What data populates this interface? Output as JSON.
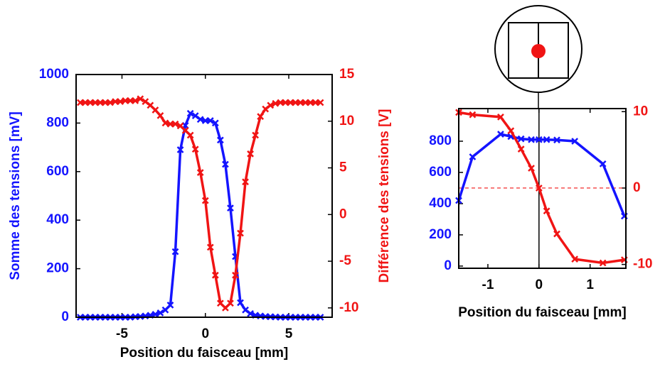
{
  "chart_data": [
    {
      "type": "line",
      "xlabel": "Position du faisceau [mm]",
      "ylabel": "Somme des tensions [mV]",
      "y2label": "Différence des tensions [V]",
      "x": [
        -7.5,
        -7.2,
        -6.9,
        -6.6,
        -6.3,
        -6.0,
        -5.7,
        -5.4,
        -5.1,
        -4.8,
        -4.5,
        -4.2,
        -3.9,
        -3.6,
        -3.3,
        -3.0,
        -2.7,
        -2.4,
        -2.1,
        -1.8,
        -1.5,
        -1.2,
        -0.9,
        -0.6,
        -0.3,
        0,
        0.3,
        0.6,
        0.9,
        1.2,
        1.5,
        1.8,
        2.1,
        2.4,
        2.7,
        3.0,
        3.3,
        3.6,
        3.9,
        4.2,
        4.5,
        4.8,
        5.1,
        5.4,
        5.7,
        6.0,
        6.3,
        6.6,
        6.9
      ],
      "series": [
        {
          "color": "#1414ff",
          "values": [
            0,
            0,
            0,
            0,
            0,
            0,
            0,
            0,
            0,
            0,
            0,
            2,
            3,
            5,
            8,
            12,
            18,
            30,
            50,
            270,
            690,
            790,
            840,
            830,
            815,
            810,
            810,
            800,
            730,
            630,
            450,
            250,
            60,
            30,
            15,
            8,
            5,
            3,
            2,
            1,
            0,
            0,
            0,
            0,
            0,
            0,
            0,
            0,
            0
          ]
        },
        {
          "color": "#f01414",
          "axis": "y2",
          "values": [
            12,
            12,
            12,
            12,
            12,
            12,
            12,
            12.1,
            12.1,
            12.2,
            12.2,
            12.2,
            12.4,
            12.1,
            11.7,
            11.2,
            10.6,
            9.8,
            9.7,
            9.7,
            9.5,
            9.0,
            8.5,
            7.0,
            4.5,
            1.5,
            -3.5,
            -6.5,
            -9.5,
            -10,
            -9.5,
            -6.5,
            -2,
            3.5,
            6.5,
            8.5,
            10.5,
            11.3,
            11.7,
            11.9,
            12,
            12,
            12,
            12,
            12,
            12,
            12,
            12,
            12
          ]
        }
      ],
      "xlim": [
        -7.75,
        7.6
      ],
      "xticks": [
        -5,
        0,
        5
      ],
      "ylim": [
        0,
        1000
      ],
      "yticks": [
        0,
        200,
        400,
        600,
        800,
        1000
      ],
      "y2lim": [
        -11,
        15
      ],
      "y2ticks": [
        -10,
        -5,
        0,
        5,
        10,
        15
      ]
    },
    {
      "type": "line",
      "xlabel": "Position du faisceau [mm]",
      "x": [
        -1.57,
        -1.3,
        -0.75,
        -0.55,
        -0.35,
        -0.15,
        0,
        0.15,
        0.35,
        0.7,
        1.25,
        1.67
      ],
      "series": [
        {
          "color": "#1414ff",
          "values": [
            420,
            700,
            845,
            830,
            815,
            810,
            810,
            810,
            808,
            800,
            655,
            320
          ]
        },
        {
          "color": "#f01414",
          "axis": "y2",
          "values": [
            9.9,
            9.6,
            9.3,
            7.5,
            5.1,
            2.6,
            0,
            -3,
            -6,
            -9.3,
            -9.8,
            -9.4
          ]
        }
      ],
      "xlim": [
        -1.57,
        1.7
      ],
      "xticks": [
        -1,
        0,
        1
      ],
      "ylim": [
        -14,
        1009
      ],
      "yticks": [
        0,
        200,
        400,
        600,
        800
      ],
      "y2lim": [
        -10.5,
        10.4
      ],
      "y2ticks": [
        -10,
        0,
        10
      ],
      "vline_x": 0,
      "hline_y2": 0
    }
  ]
}
